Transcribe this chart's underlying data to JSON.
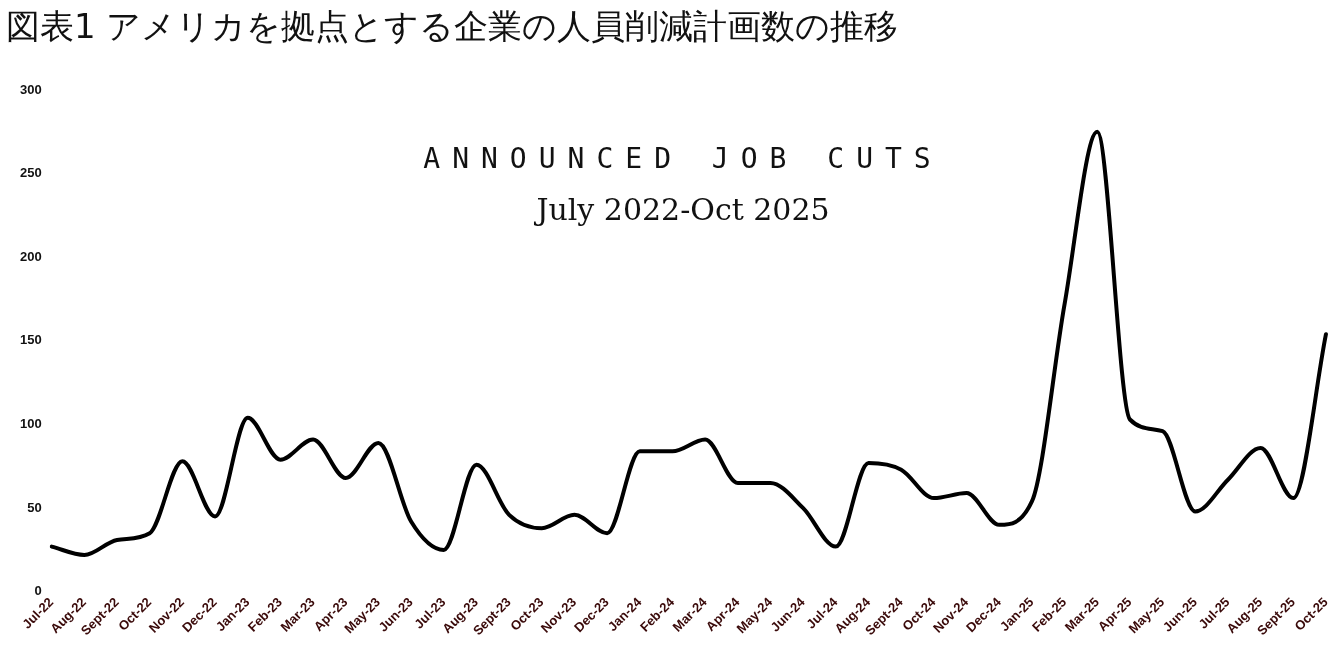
{
  "chart_data": {
    "type": "line",
    "title": "図表1 アメリカを拠点とする企業の人員削減計画数の推移",
    "subtitle": "ANNOUNCED JOB CUTS",
    "annotations": [
      "July 2022-Oct 2025"
    ],
    "categories": [
      "Jul-22",
      "Aug-22",
      "Sept-22",
      "Oct-22",
      "Nov-22",
      "Dec-22",
      "Jan-23",
      "Feb-23",
      "Mar-23",
      "Apr-23",
      "May-23",
      "Jun-23",
      "Jul-23",
      "Aug-23",
      "Sept-23",
      "Oct-23",
      "Nov-23",
      "Dec-23",
      "Jan-24",
      "Feb-24",
      "Mar-24",
      "Apr-24",
      "May-24",
      "Jun-24",
      "Jul-24",
      "Aug-24",
      "Sept-24",
      "Oct-24",
      "Nov-24",
      "Dec-24",
      "Jan-25",
      "Feb-25",
      "Mar-25",
      "Apr-25",
      "May-25",
      "Jun-25",
      "Jul-25",
      "Aug-25",
      "Sept-25",
      "Oct-25"
    ],
    "series": [
      {
        "color": "#000000",
        "values": [
          27,
          22,
          31,
          35,
          78,
          45,
          104,
          79,
          91,
          68,
          89,
          42,
          25,
          76,
          46,
          38,
          46,
          35,
          84,
          84,
          91,
          65,
          65,
          50,
          27,
          77,
          73,
          56,
          59,
          40,
          54,
          172,
          275,
          103,
          96,
          48,
          67,
          86,
          56,
          154
        ]
      }
    ],
    "ylim": [
      0,
      300
    ],
    "yticks": [
      0,
      50,
      100,
      150,
      200,
      250,
      300
    ],
    "grid": false,
    "legend": false,
    "marker": "none",
    "line_style": "solid"
  }
}
